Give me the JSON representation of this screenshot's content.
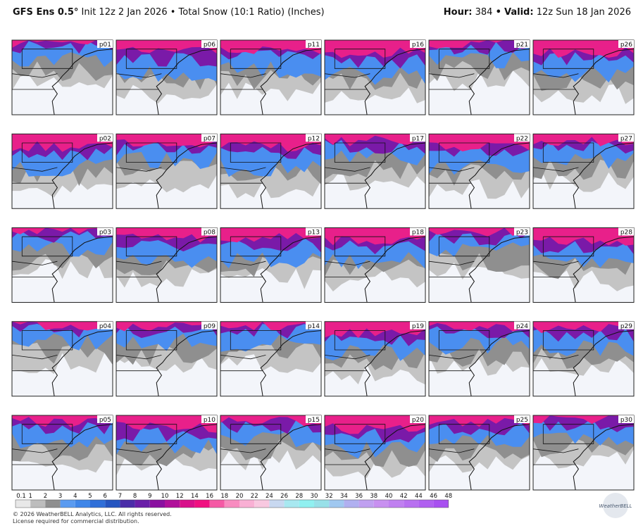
{
  "header": {
    "model": "GFS Ens 0.5°",
    "description": "Init 12z 2 Jan 2026 • Total Snow (10:1 Ratio) (Inches)",
    "hour_label": "Hour:",
    "hour": "384",
    "separator": "•",
    "valid_label": "Valid:",
    "valid": "12z Sun 18 Jan 2026"
  },
  "panels": [
    "p01",
    "p02",
    "p03",
    "p04",
    "p05",
    "p06",
    "p07",
    "p08",
    "p09",
    "p10",
    "p11",
    "p12",
    "p13",
    "p14",
    "p15",
    "p16",
    "p17",
    "p18",
    "p19",
    "p20",
    "p21",
    "p22",
    "p23",
    "p24",
    "p25",
    "p26",
    "p27",
    "p28",
    "p29",
    "p30"
  ],
  "legend": {
    "labels": [
      0.1,
      1,
      2,
      3,
      4,
      5,
      6,
      7,
      8,
      9,
      10,
      12,
      14,
      16,
      18,
      20,
      22,
      24,
      26,
      28,
      30,
      32,
      34,
      36,
      38,
      40,
      42,
      44,
      46,
      48
    ],
    "colors": [
      "#e8e8e8",
      "#bdbdbd",
      "#8f8f8f",
      "#5a9bf0",
      "#3f86e8",
      "#2f6fd8",
      "#2555c0",
      "#4b2da8",
      "#6a1fa8",
      "#8a10a0",
      "#b0109a",
      "#d8108a",
      "#f01080",
      "#f55aa5",
      "#f88cc0",
      "#f9b0d4",
      "#f8c8e0",
      "#c8d8f0",
      "#a8e8f0",
      "#90f0f0",
      "#98e0e8",
      "#a0c8f0",
      "#b0b0f0",
      "#c0a0f0",
      "#c890f0",
      "#c080f0",
      "#b870f0",
      "#b060f0",
      "#a850f0"
    ]
  },
  "footer": {
    "copyright": "© 2026 WeatherBELL Analytics, LLC. All rights reserved.",
    "license": "License required for commercial distribution.",
    "logo": "WeatherBELL"
  }
}
